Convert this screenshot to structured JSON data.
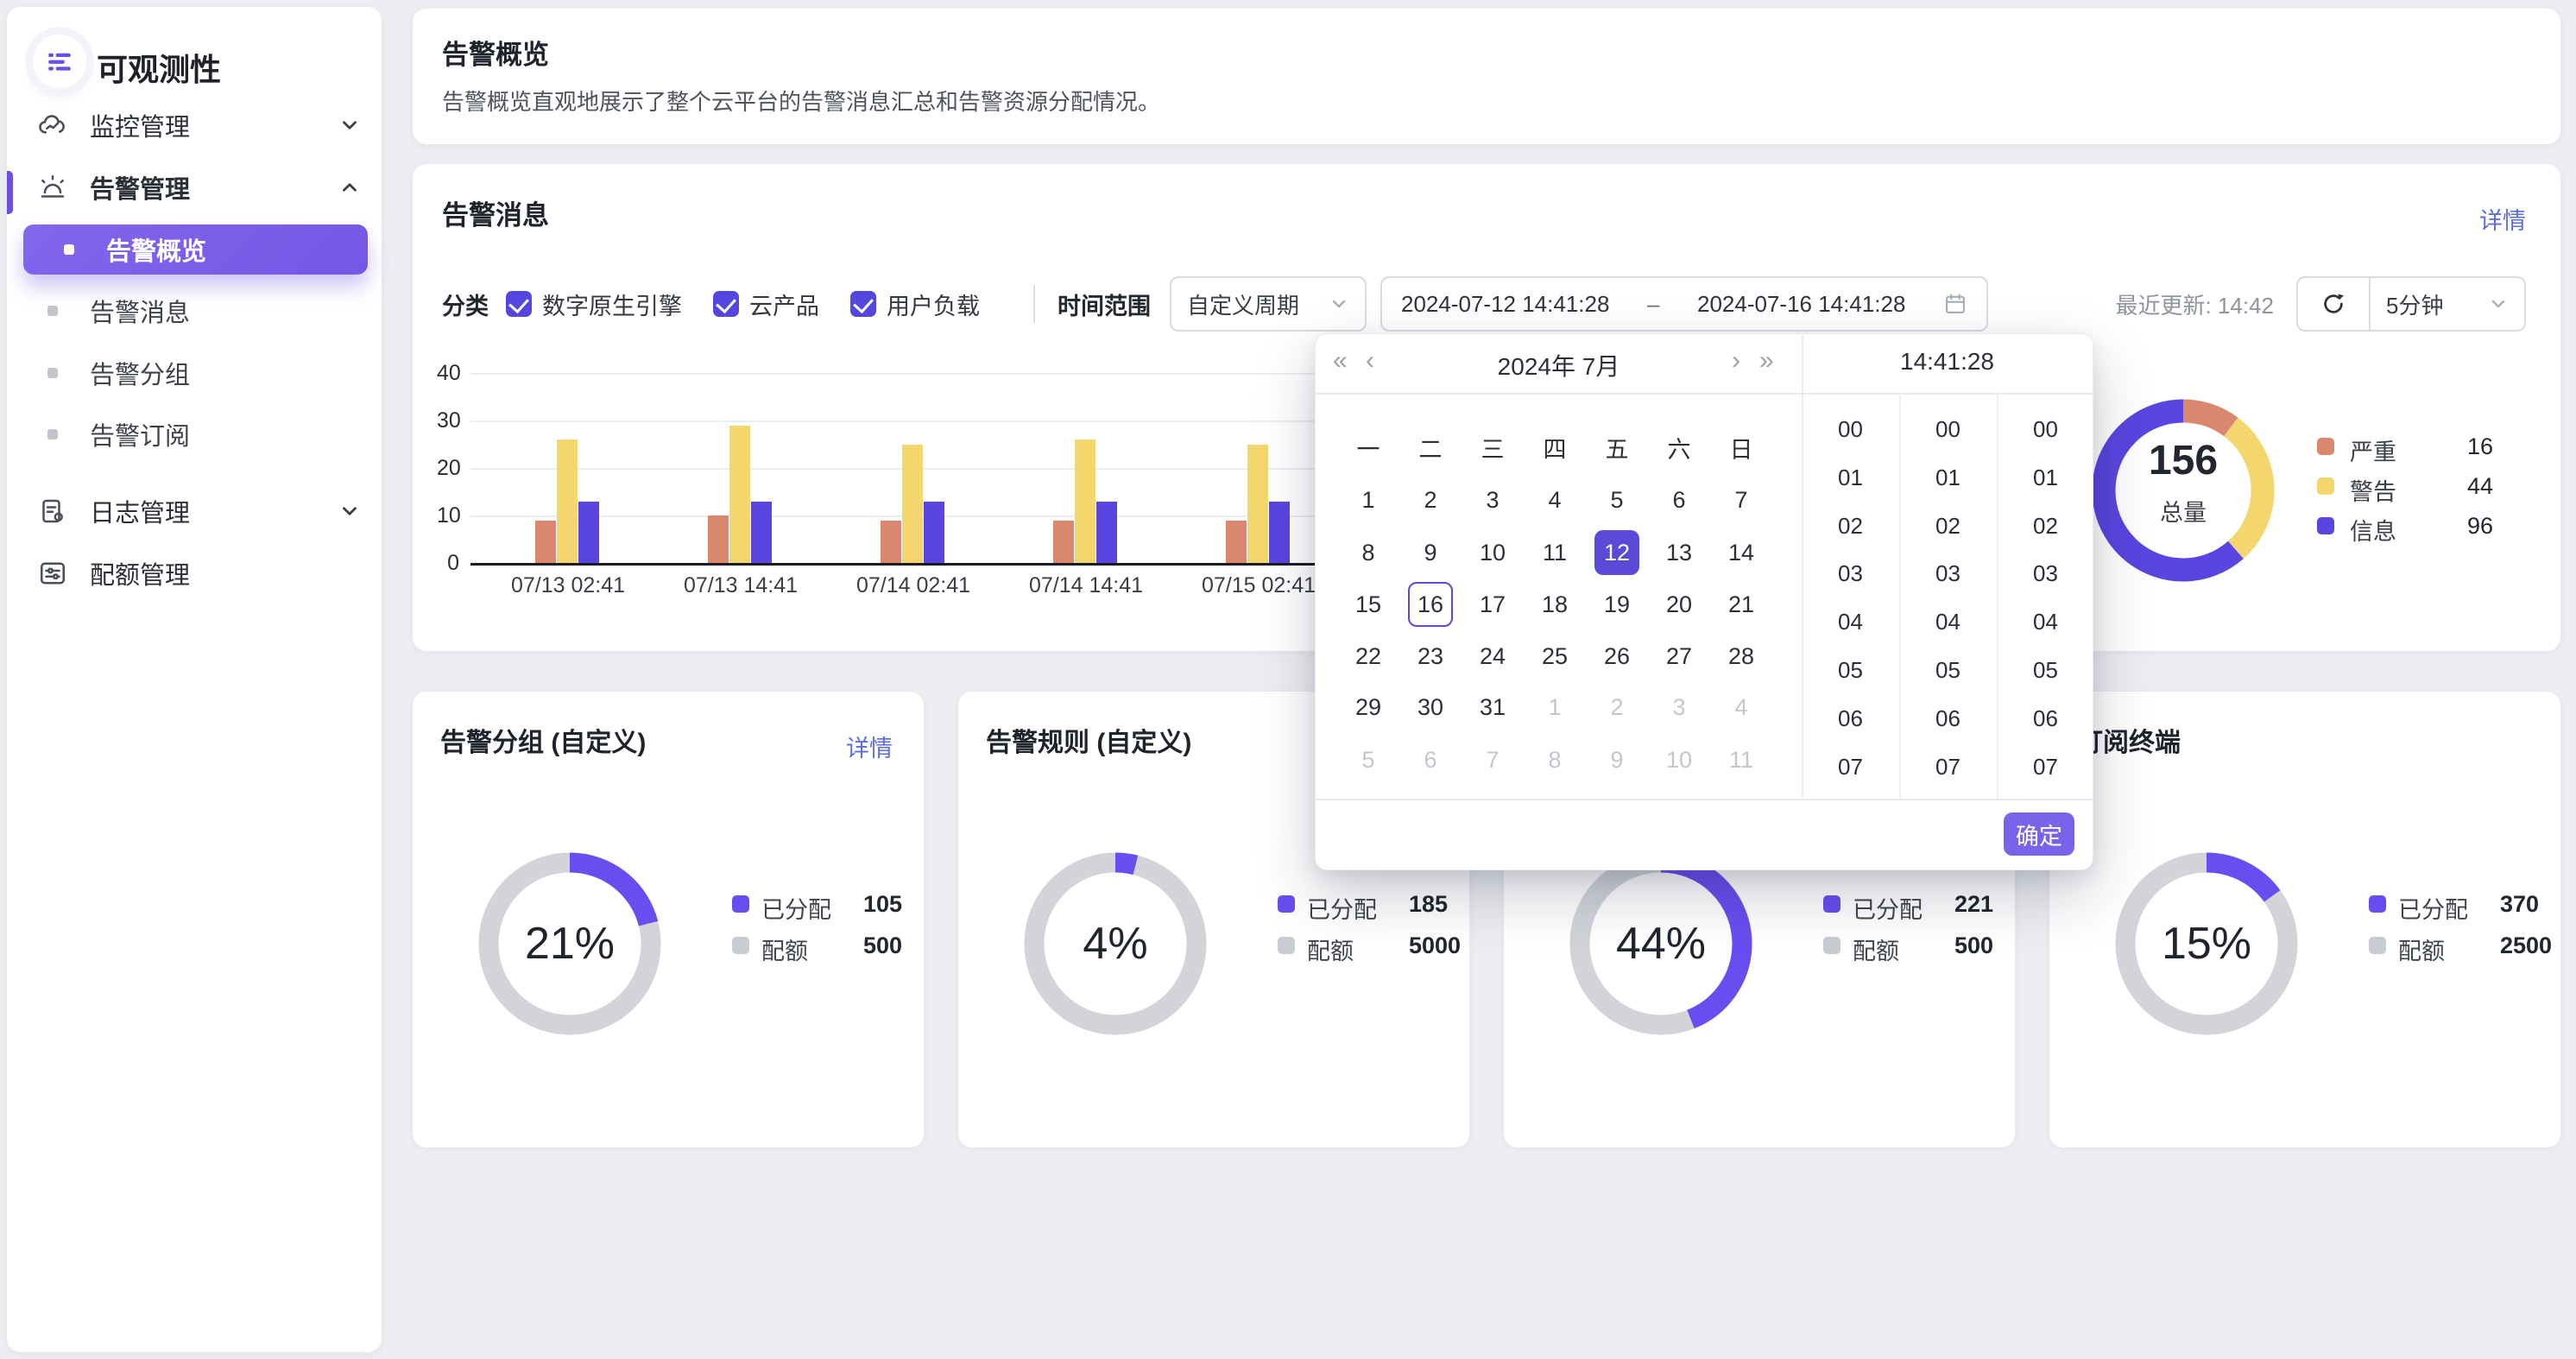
{
  "colors": {
    "primary_purple": "#7C61E8",
    "deep_purple": "#5646E0",
    "donut_purple": "#6A4DF0",
    "severe": "#D9886E",
    "warning": "#F3D76E",
    "info": "#5A45E0",
    "ring_gray": "#D2D4DA",
    "link": "#5B6BE6"
  },
  "sidebar": {
    "title": "可观测性",
    "logo_icon": "observability-logo-icon",
    "items": [
      {
        "type": "group",
        "icon": "cloud-monitor-icon",
        "label": "监控管理",
        "chevron": "down",
        "active": false
      },
      {
        "type": "group",
        "icon": "alarm-icon",
        "label": "告警管理",
        "chevron": "up",
        "active": true
      },
      {
        "type": "sub",
        "label": "告警概览",
        "active": true
      },
      {
        "type": "sub",
        "label": "告警消息",
        "active": false
      },
      {
        "type": "sub",
        "label": "告警分组",
        "active": false
      },
      {
        "type": "sub",
        "label": "告警订阅",
        "active": false
      },
      {
        "type": "group",
        "icon": "log-icon",
        "label": "日志管理",
        "chevron": "down",
        "active": false
      },
      {
        "type": "group",
        "icon": "quota-icon",
        "label": "配额管理",
        "chevron": null,
        "active": false
      }
    ]
  },
  "page_header": {
    "title": "告警概览",
    "description": "告警概览直观地展示了整个云平台的告警消息汇总和告警资源分配情况。"
  },
  "alerts_card": {
    "title": "告警消息",
    "details_link": "详情",
    "category_label": "分类",
    "categories": [
      {
        "label": "数字原生引擎",
        "checked": true
      },
      {
        "label": "云产品",
        "checked": true
      },
      {
        "label": "用户负载",
        "checked": true
      }
    ],
    "time_range_label": "时间范围",
    "period_select_value": "自定义周期",
    "date_start": "2024-07-12 14:41:28",
    "date_separator": "–",
    "date_end": "2024-07-16 14:41:28",
    "last_update": "最近更新: 14:42",
    "refresh_interval_value": "5分钟",
    "donut": {
      "total": "156",
      "total_label": "总量",
      "legend": [
        {
          "label": "严重",
          "value": "16",
          "color": "#D9886E"
        },
        {
          "label": "警告",
          "value": "44",
          "color": "#F3D76E"
        },
        {
          "label": "信息",
          "value": "96",
          "color": "#5A45E0"
        }
      ]
    }
  },
  "chart_data": {
    "type": "bar",
    "categories": [
      "07/13 02:41",
      "07/13 14:41",
      "07/14 02:41",
      "07/14 14:41",
      "07/15 02:41"
    ],
    "series": [
      {
        "name": "严重",
        "color": "#D9886E",
        "values": [
          9,
          10,
          9,
          9,
          9
        ]
      },
      {
        "name": "警告",
        "color": "#F3D76E",
        "values": [
          26,
          29,
          25,
          26,
          25
        ]
      },
      {
        "name": "信息",
        "color": "#5A45E0",
        "values": [
          13,
          13,
          13,
          13,
          13
        ]
      }
    ],
    "ylim": [
      0,
      40
    ],
    "yticks": [
      0,
      10,
      20,
      30,
      40
    ],
    "grid": true,
    "legend_position": "right-donut"
  },
  "datepicker": {
    "prev_year": "«",
    "prev_month": "‹",
    "next_month": "›",
    "next_year": "»",
    "month_title": "2024年  7月",
    "time_title": "14:41:28",
    "weekdays": [
      "一",
      "二",
      "三",
      "四",
      "五",
      "六",
      "日"
    ],
    "weeks": [
      [
        {
          "d": "1"
        },
        {
          "d": "2"
        },
        {
          "d": "3"
        },
        {
          "d": "4"
        },
        {
          "d": "5"
        },
        {
          "d": "6"
        },
        {
          "d": "7"
        }
      ],
      [
        {
          "d": "8"
        },
        {
          "d": "9"
        },
        {
          "d": "10"
        },
        {
          "d": "11"
        },
        {
          "d": "12",
          "state": "selected"
        },
        {
          "d": "13"
        },
        {
          "d": "14"
        }
      ],
      [
        {
          "d": "15"
        },
        {
          "d": "16",
          "state": "outlined"
        },
        {
          "d": "17"
        },
        {
          "d": "18"
        },
        {
          "d": "19"
        },
        {
          "d": "20"
        },
        {
          "d": "21"
        }
      ],
      [
        {
          "d": "22"
        },
        {
          "d": "23"
        },
        {
          "d": "24"
        },
        {
          "d": "25"
        },
        {
          "d": "26"
        },
        {
          "d": "27"
        },
        {
          "d": "28"
        }
      ],
      [
        {
          "d": "29"
        },
        {
          "d": "30"
        },
        {
          "d": "31"
        },
        {
          "d": "1",
          "state": "muted"
        },
        {
          "d": "2",
          "state": "muted"
        },
        {
          "d": "3",
          "state": "muted"
        },
        {
          "d": "4",
          "state": "muted"
        }
      ],
      [
        {
          "d": "5",
          "state": "muted"
        },
        {
          "d": "6",
          "state": "muted"
        },
        {
          "d": "7",
          "state": "muted"
        },
        {
          "d": "8",
          "state": "muted"
        },
        {
          "d": "9",
          "state": "muted"
        },
        {
          "d": "10",
          "state": "muted"
        },
        {
          "d": "11",
          "state": "muted"
        }
      ]
    ],
    "time_columns": [
      [
        "00",
        "01",
        "02",
        "03",
        "04",
        "05",
        "06",
        "07"
      ],
      [
        "00",
        "01",
        "02",
        "03",
        "04",
        "05",
        "06",
        "07"
      ],
      [
        "00",
        "01",
        "02",
        "03",
        "04",
        "05",
        "06",
        "07"
      ]
    ],
    "ok_label": "确定"
  },
  "quota_cards": [
    {
      "title": "告警分组 (自定义)",
      "details_link": "详情",
      "percent": "21%",
      "fraction": 0.21,
      "allocated_label": "已分配",
      "allocated": "105",
      "quota_label": "配额",
      "quota": "500"
    },
    {
      "title": "告警规则 (自定义)",
      "details_link": "",
      "percent": "4%",
      "fraction": 0.04,
      "allocated_label": "已分配",
      "allocated": "185",
      "quota_label": "配额",
      "quota": "5000"
    },
    {
      "title": "",
      "details_link": "",
      "percent": "44%",
      "fraction": 0.44,
      "allocated_label": "已分配",
      "allocated": "221",
      "quota_label": "配额",
      "quota": "500"
    },
    {
      "title": "订阅终端",
      "details_link": "",
      "percent": "15%",
      "fraction": 0.15,
      "allocated_label": "已分配",
      "allocated": "370",
      "quota_label": "配额",
      "quota": "2500"
    }
  ]
}
